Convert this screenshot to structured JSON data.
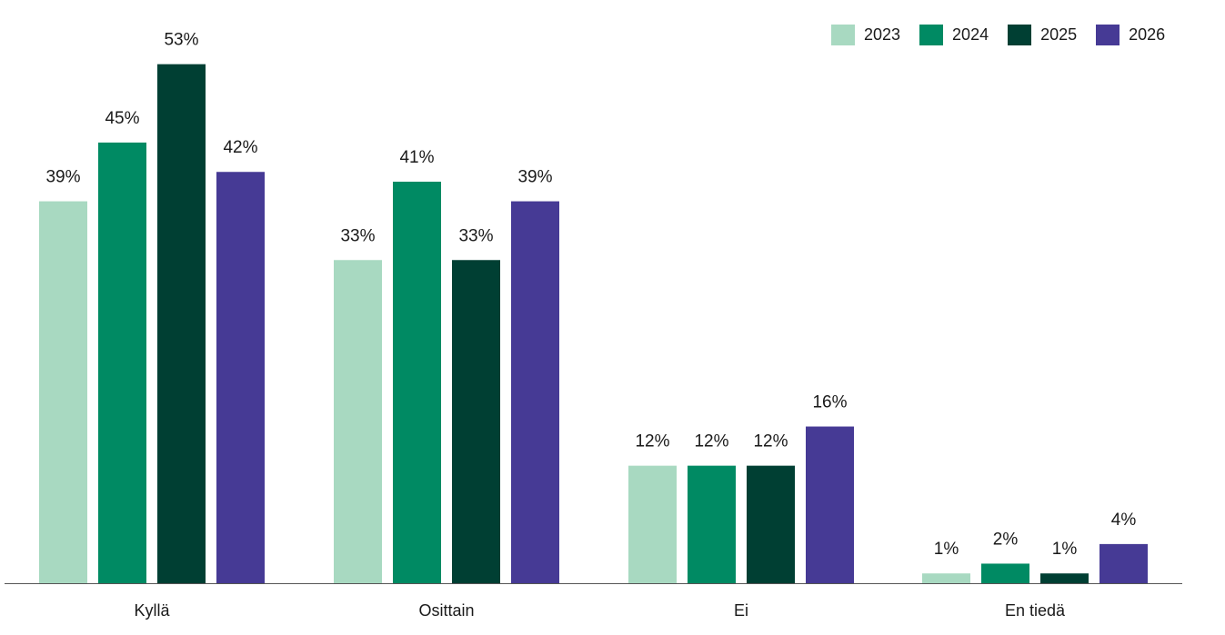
{
  "chart_data": {
    "type": "bar",
    "categories": [
      "Kyllä",
      "Osittain",
      "Ei",
      "En tiedä"
    ],
    "series": [
      {
        "name": "2023",
        "color": "#a8d9c1",
        "values": [
          39,
          33,
          12,
          1
        ],
        "labels": [
          "39%",
          "33%",
          "12%",
          "1%"
        ]
      },
      {
        "name": "2024",
        "color": "#008a63",
        "values": [
          45,
          41,
          12,
          2
        ],
        "labels": [
          "45%",
          "41%",
          "12%",
          "2%"
        ]
      },
      {
        "name": "2025",
        "color": "#003f33",
        "values": [
          53,
          33,
          12,
          1
        ],
        "labels": [
          "53%",
          "33%",
          "12%",
          "1%"
        ]
      },
      {
        "name": "2026",
        "color": "#463a95",
        "values": [
          42,
          39,
          16,
          4
        ],
        "labels": [
          "42%",
          "39%",
          "16%",
          "4%"
        ]
      }
    ],
    "title": "",
    "xlabel": "",
    "ylabel": "",
    "legend_position": "top-right",
    "grid": false
  }
}
